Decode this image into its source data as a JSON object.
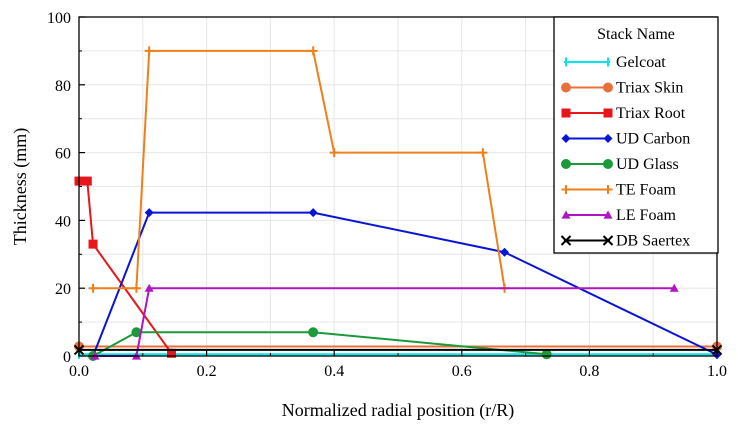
{
  "chart_data": {
    "type": "line",
    "title": "",
    "xlabel": "Normalized radial position (r/R)",
    "ylabel": "Thickness (mm)",
    "xlim": [
      0,
      1
    ],
    "ylim": [
      0,
      100
    ],
    "xticks": [
      0,
      0.2,
      0.4,
      0.6,
      0.8,
      1.0
    ],
    "xtick_labels": [
      "0.0",
      "0.2",
      "0.4",
      "0.6",
      "0.8",
      "1.0"
    ],
    "yticks": [
      0,
      20,
      40,
      60,
      80,
      100
    ],
    "ytick_labels": [
      "0",
      "20",
      "40",
      "60",
      "80",
      "100"
    ],
    "grid": true,
    "legend": {
      "title": "Stack Name",
      "position": "top-right"
    },
    "series": [
      {
        "name": "Gelcoat",
        "color": "#00e5ee",
        "marker": "bar",
        "x": [
          0.0,
          1.0
        ],
        "y": [
          0.5,
          0.5
        ]
      },
      {
        "name": "Triax Skin",
        "color": "#e8703a",
        "marker": "circle",
        "x": [
          0.0,
          1.0
        ],
        "y": [
          2.8,
          2.8
        ]
      },
      {
        "name": "Triax Root",
        "color": "#e8161b",
        "marker": "square",
        "x": [
          0.0,
          0.013,
          0.022,
          0.145
        ],
        "y": [
          51.6,
          51.6,
          33.0,
          0.8
        ]
      },
      {
        "name": "UD Carbon",
        "color": "#0a14d6",
        "marker": "diamond",
        "x": [
          0.022,
          0.11,
          0.367,
          0.667,
          1.0
        ],
        "y": [
          0.0,
          42.3,
          42.3,
          30.6,
          0.4
        ]
      },
      {
        "name": "UD Glass",
        "color": "#1a9a3a",
        "marker": "circle",
        "x": [
          0.022,
          0.09,
          0.367,
          0.733
        ],
        "y": [
          0.0,
          7.0,
          7.0,
          0.5
        ]
      },
      {
        "name": "TE Foam",
        "color": "#f07f1a",
        "marker": "plus",
        "x": [
          0.022,
          0.09,
          0.11,
          0.367,
          0.4,
          0.633,
          0.667
        ],
        "y": [
          20,
          20,
          90,
          90,
          60,
          60,
          20
        ]
      },
      {
        "name": "LE Foam",
        "color": "#b014c4",
        "marker": "triangle",
        "x": [
          0.025,
          0.09,
          0.11,
          0.933
        ],
        "y": [
          0.0,
          0.0,
          20,
          20
        ]
      },
      {
        "name": "DB Saertex",
        "color": "#000000",
        "marker": "cross",
        "x": [
          0.0,
          1.0
        ],
        "y": [
          1.8,
          1.8
        ]
      }
    ]
  }
}
